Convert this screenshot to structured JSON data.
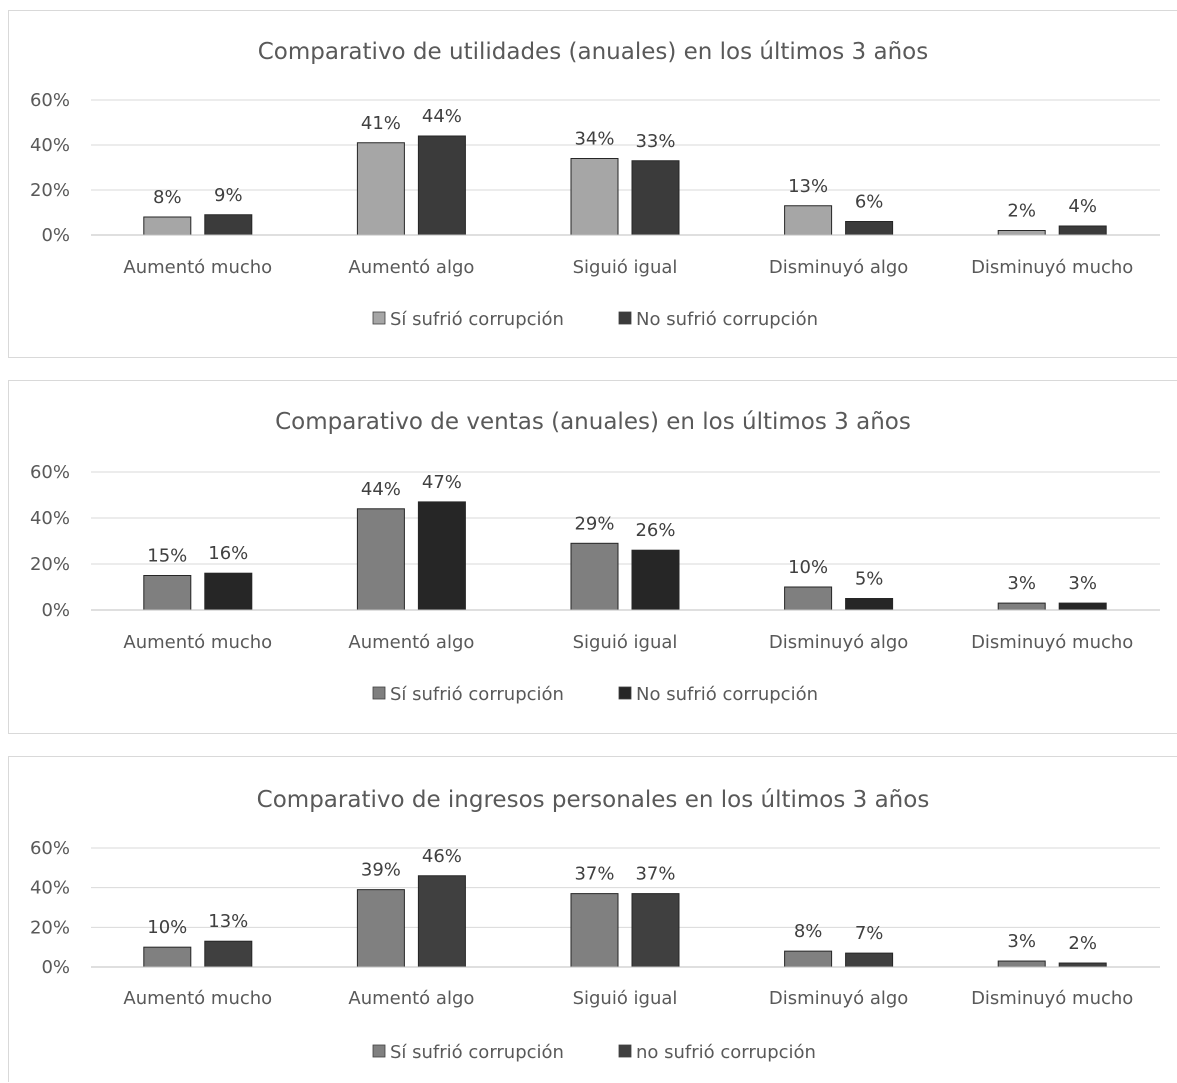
{
  "chart_data": [
    {
      "type": "bar",
      "title": "Comparativo de utilidades (anuales) en los últimos 3 años",
      "categories": [
        "Aumentó mucho",
        "Aumentó algo",
        "Siguió igual",
        "Disminuyó algo",
        "Disminuyó mucho"
      ],
      "series": [
        {
          "name": "Sí sufrió corrupción",
          "color": "#a6a6a6",
          "values": [
            8,
            41,
            34,
            13,
            2
          ],
          "labels": [
            "8%",
            "41%",
            "34%",
            "13%",
            "2%"
          ]
        },
        {
          "name": "No sufrió corrupción",
          "color": "#3b3b3b",
          "values": [
            9,
            44,
            33,
            6,
            4
          ],
          "labels": [
            "9%",
            "44%",
            "33%",
            "6%",
            "4%"
          ]
        }
      ],
      "yticks": [
        "0%",
        "20%",
        "40%",
        "60%"
      ],
      "ylim": [
        0,
        60
      ],
      "grid": true,
      "legend_position": "bottom"
    },
    {
      "type": "bar",
      "title": "Comparativo de ventas (anuales) en los últimos 3 años",
      "categories": [
        "Aumentó mucho",
        "Aumentó algo",
        "Siguió igual",
        "Disminuyó algo",
        "Disminuyó mucho"
      ],
      "series": [
        {
          "name": "Sí sufrió corrupción",
          "color": "#7f7f7f",
          "values": [
            15,
            44,
            29,
            10,
            3
          ],
          "labels": [
            "15%",
            "44%",
            "29%",
            "10%",
            "3%"
          ]
        },
        {
          "name": "No sufrió corrupción",
          "color": "#262626",
          "values": [
            16,
            47,
            26,
            5,
            3
          ],
          "labels": [
            "16%",
            "47%",
            "26%",
            "5%",
            "3%"
          ]
        }
      ],
      "yticks": [
        "0%",
        "20%",
        "40%",
        "60%"
      ],
      "ylim": [
        0,
        60
      ],
      "grid": true,
      "legend_position": "bottom"
    },
    {
      "type": "bar",
      "title": "Comparativo de ingresos personales en los últimos 3 años",
      "categories": [
        "Aumentó mucho",
        "Aumentó algo",
        "Siguió igual",
        "Disminuyó algo",
        "Disminuyó mucho"
      ],
      "series": [
        {
          "name": "Sí sufrió corrupción",
          "color": "#808080",
          "values": [
            10,
            39,
            37,
            8,
            3
          ],
          "labels": [
            "10%",
            "39%",
            "37%",
            "8%",
            "3%"
          ]
        },
        {
          "name": "no sufrió corrupción",
          "color": "#404040",
          "values": [
            13,
            46,
            37,
            7,
            2
          ],
          "labels": [
            "13%",
            "46%",
            "37%",
            "7%",
            "2%"
          ]
        }
      ],
      "yticks": [
        "0%",
        "20%",
        "40%",
        "60%"
      ],
      "ylim": [
        0,
        60
      ],
      "grid": true,
      "legend_position": "bottom"
    }
  ]
}
